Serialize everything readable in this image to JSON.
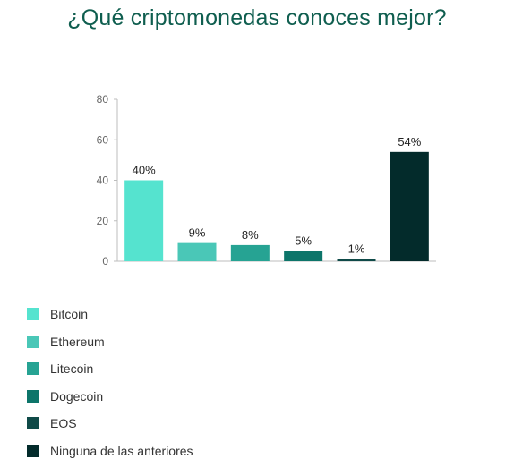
{
  "title": "¿Qué criptomonedas conoces mejor?",
  "chart_data": {
    "type": "bar",
    "categories": [
      "Bitcoin",
      "Ethereum",
      "Litecoin",
      "Dogecoin",
      "EOS",
      "Ninguna de las anteriores"
    ],
    "values": [
      40,
      9,
      8,
      5,
      1,
      54
    ],
    "data_labels": [
      "40%",
      "9%",
      "8%",
      "5%",
      "1%",
      "54%"
    ],
    "colors": [
      "#55e3cf",
      "#4ac7b7",
      "#26a393",
      "#0d756a",
      "#0f4a48",
      "#032b2b"
    ],
    "ylim": [
      0,
      80
    ],
    "yticks": [
      0,
      20,
      40,
      60,
      80
    ],
    "ytick_labels": [
      "0",
      "20",
      "40",
      "60",
      "80"
    ],
    "xlabel": "",
    "ylabel": "",
    "grid": false,
    "legend_position": "bottom-left"
  }
}
